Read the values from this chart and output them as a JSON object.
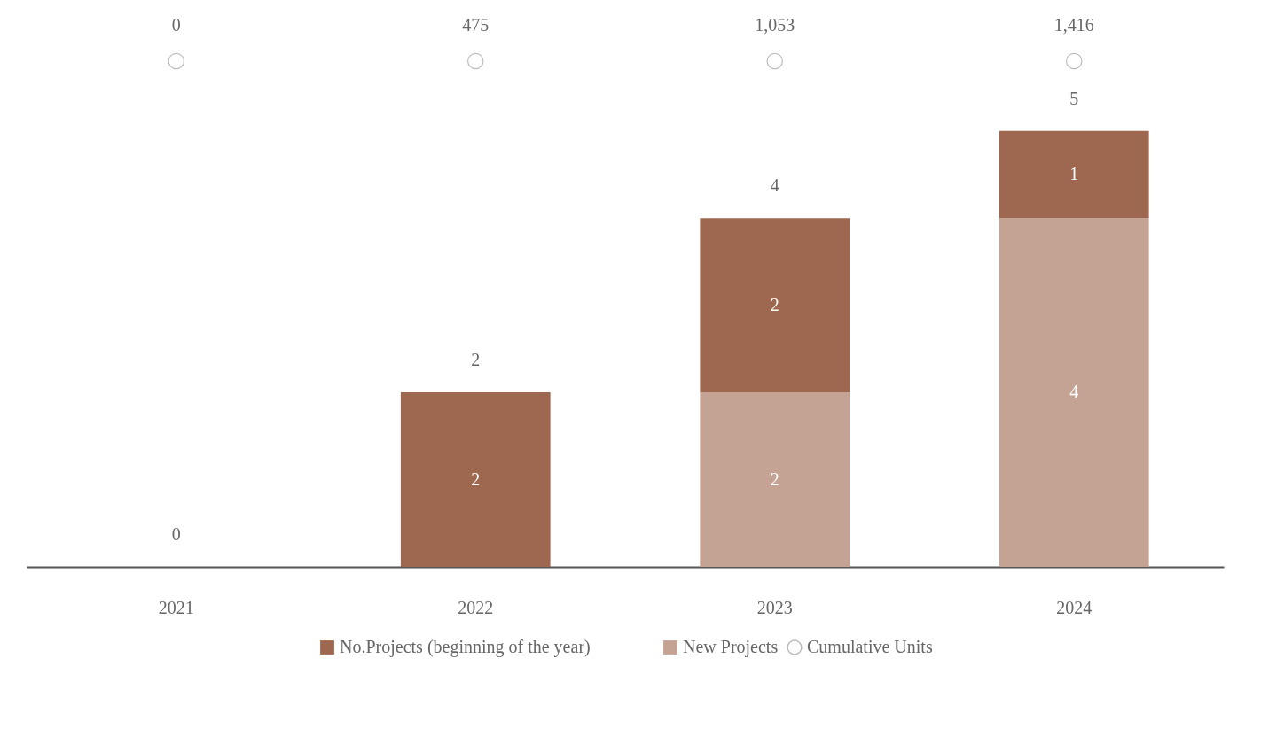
{
  "chart_data": {
    "type": "bar",
    "stacked": true,
    "categories": [
      "2021",
      "2022",
      "2023",
      "2024"
    ],
    "series": [
      {
        "name": "New Projects",
        "color": "#c5a394",
        "values": [
          0,
          0,
          2,
          4
        ],
        "value_labels": [
          null,
          null,
          "2",
          "4"
        ]
      },
      {
        "name": "No.Projects (beginning of the year)",
        "color": "#9d684f",
        "values": [
          0,
          2,
          2,
          1
        ],
        "value_labels": [
          null,
          "2",
          "2",
          "1"
        ]
      }
    ],
    "annotations": [
      "Cumulative Units",
      "0",
      "475",
      "1,053",
      "1,416"
    ],
    "totals": [
      "0",
      "2",
      "4",
      "5"
    ],
    "tick_labels": "x",
    "legend": "bottom",
    "grid": false
  }
}
